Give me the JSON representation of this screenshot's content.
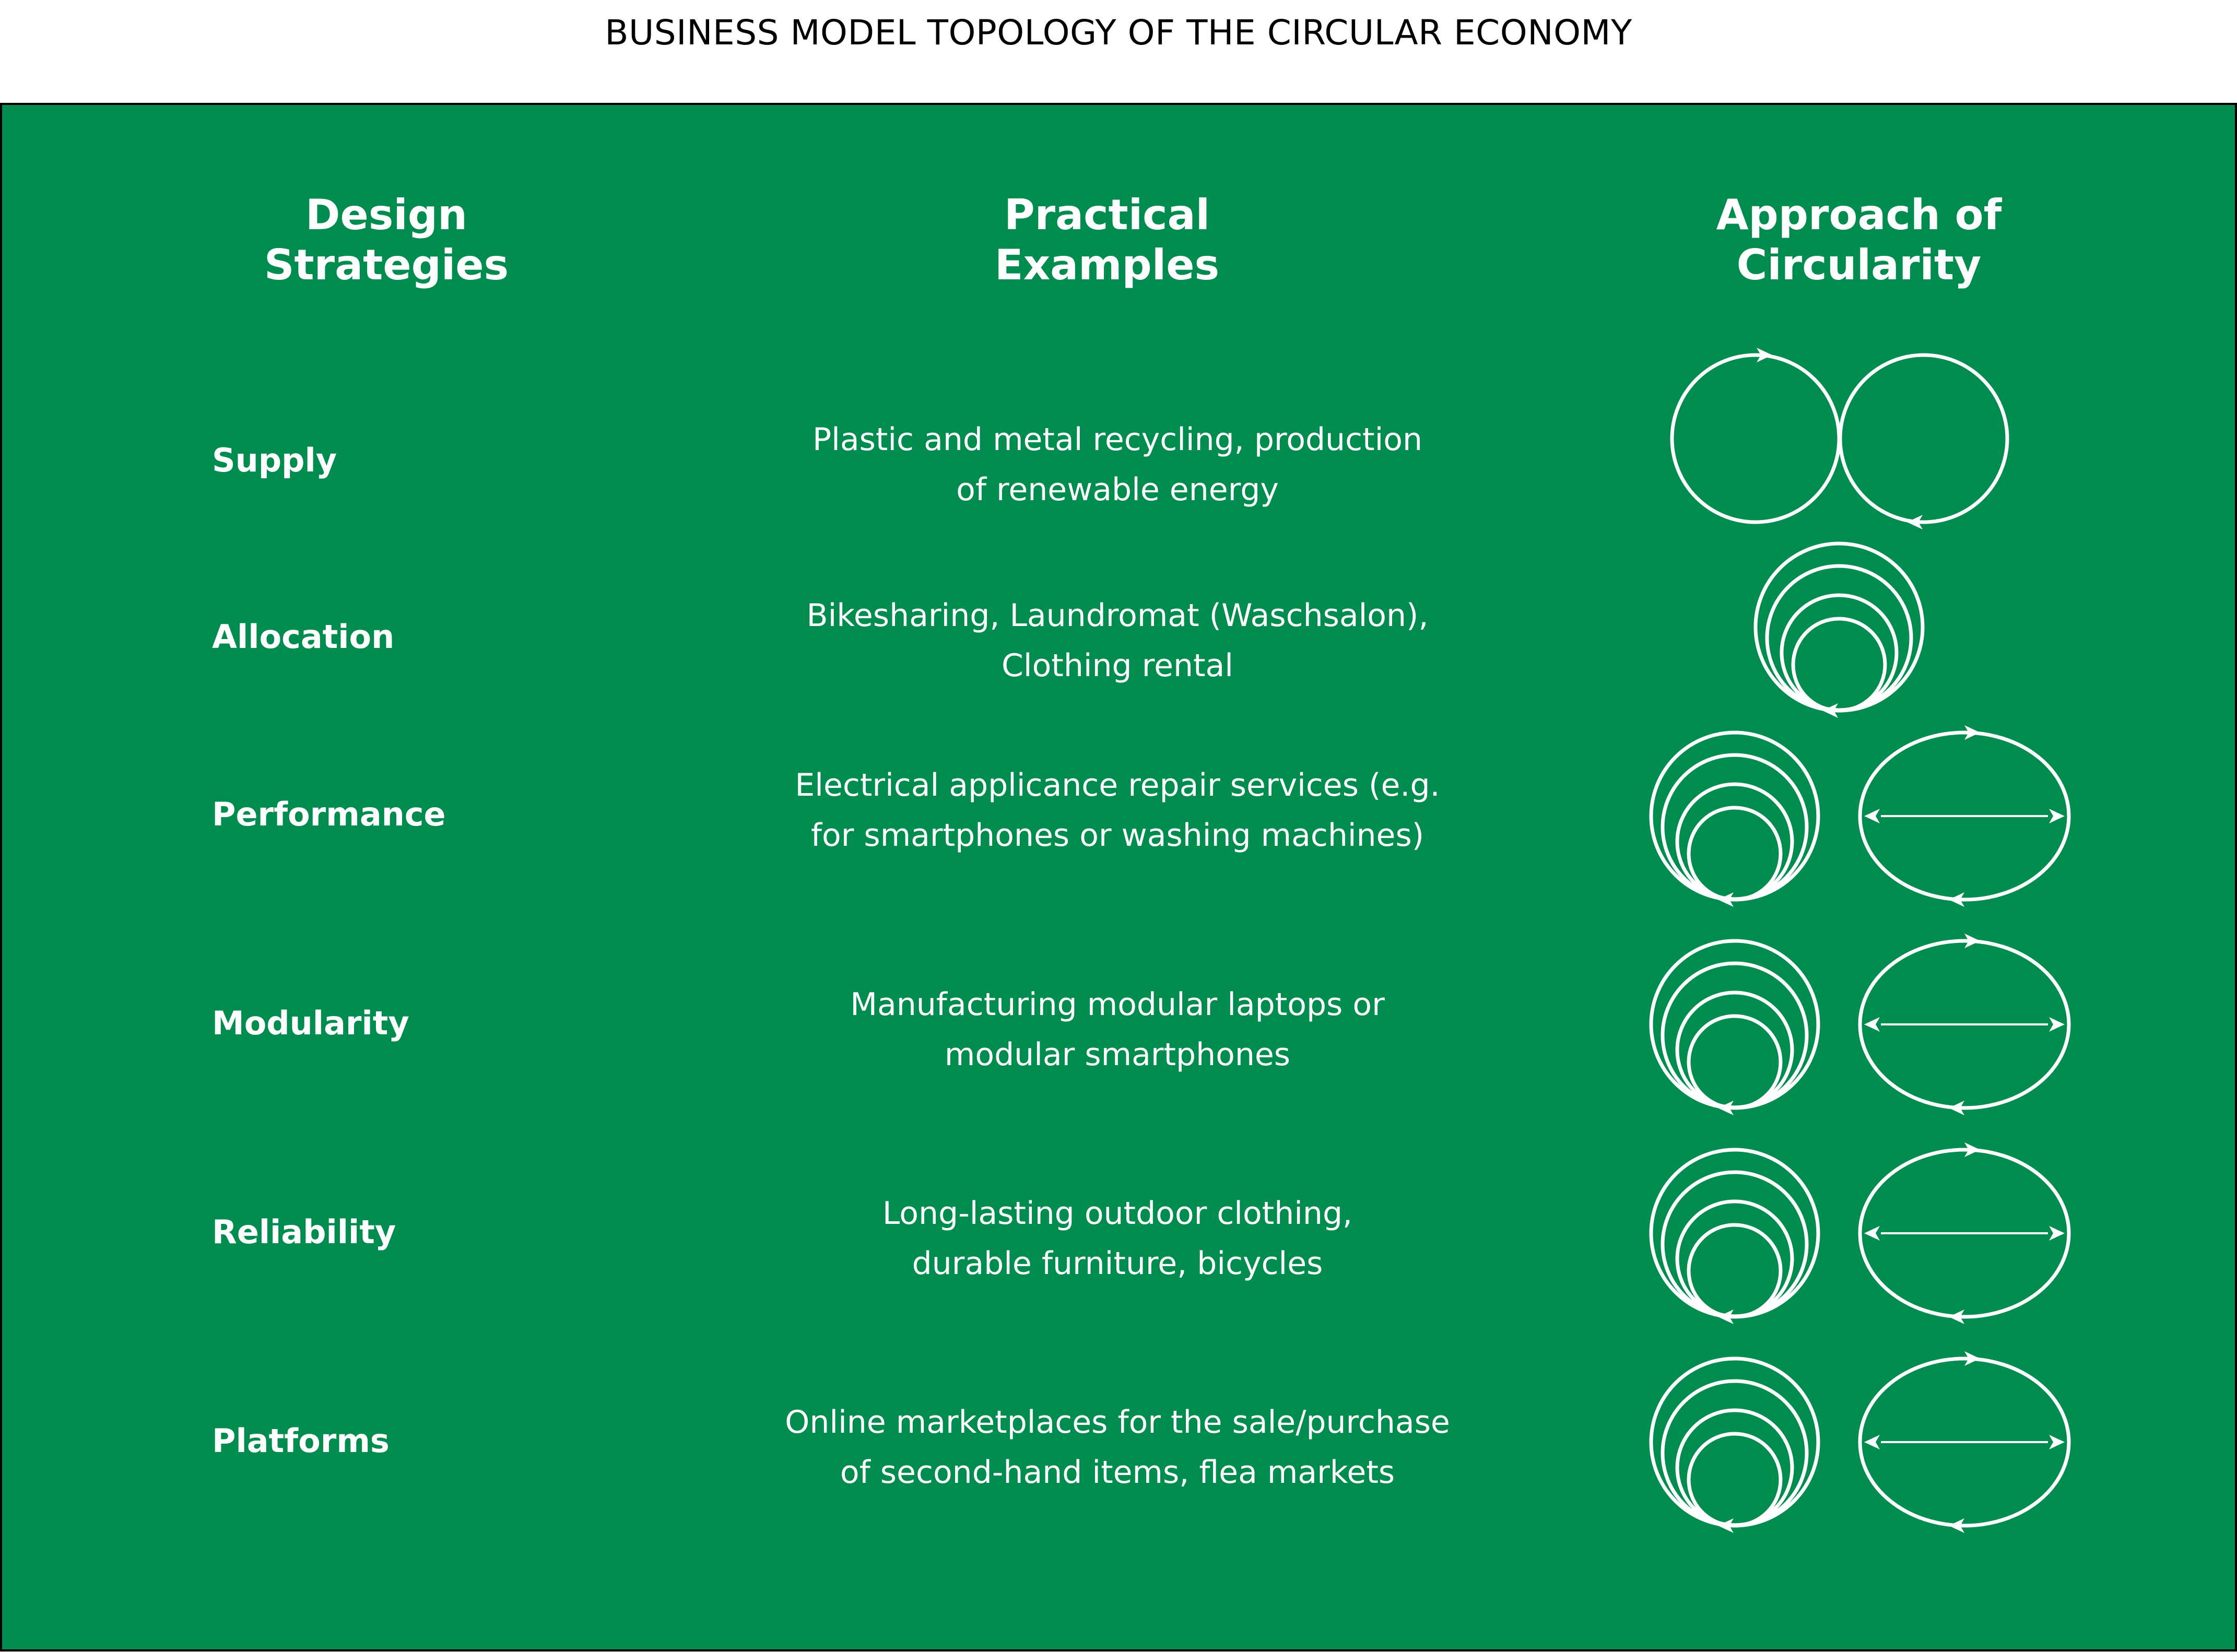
{
  "title": "BUSINESS MODEL TOPOLOGY OF THE CIRCULAR ECONOMY",
  "headers": {
    "design_strategies": [
      "Design",
      "Strategies"
    ],
    "practical_examples": [
      "Practical",
      "Examples"
    ],
    "approach": [
      "Approach of",
      "Circularity"
    ]
  },
  "rows": [
    {
      "strategy": "Supply",
      "example": [
        "Plastic and metal recycling, production",
        "of renewable energy"
      ],
      "icons": [
        "double-loop-icon"
      ]
    },
    {
      "strategy": "Allocation",
      "example": [
        "Bikesharing, Laundromat (Waschsalon),",
        "Clothing rental"
      ],
      "icons": [
        "nested-loops-icon"
      ]
    },
    {
      "strategy": "Performance",
      "example": [
        "Electrical applicance repair services (e.g.",
        "for smartphones or washing machines)"
      ],
      "icons": [
        "nested-loops-icon",
        "exchange-loop-icon"
      ]
    },
    {
      "strategy": "Modularity",
      "example": [
        "Manufacturing modular laptops or",
        "modular smartphones"
      ],
      "icons": [
        "nested-loops-icon",
        "exchange-loop-icon"
      ]
    },
    {
      "strategy": "Reliability",
      "example": [
        "Long-lasting outdoor clothing,",
        "durable furniture, bicycles"
      ],
      "icons": [
        "nested-loops-icon",
        "exchange-loop-icon"
      ]
    },
    {
      "strategy": "Platforms",
      "example": [
        "Online marketplaces for the sale/purchase",
        "of second-hand items, flea markets"
      ],
      "icons": [
        "nested-loops-icon",
        "exchange-loop-icon"
      ]
    }
  ],
  "colors": {
    "panel": "#008c4f",
    "foreground": "#ffffff",
    "border": "#000000"
  }
}
